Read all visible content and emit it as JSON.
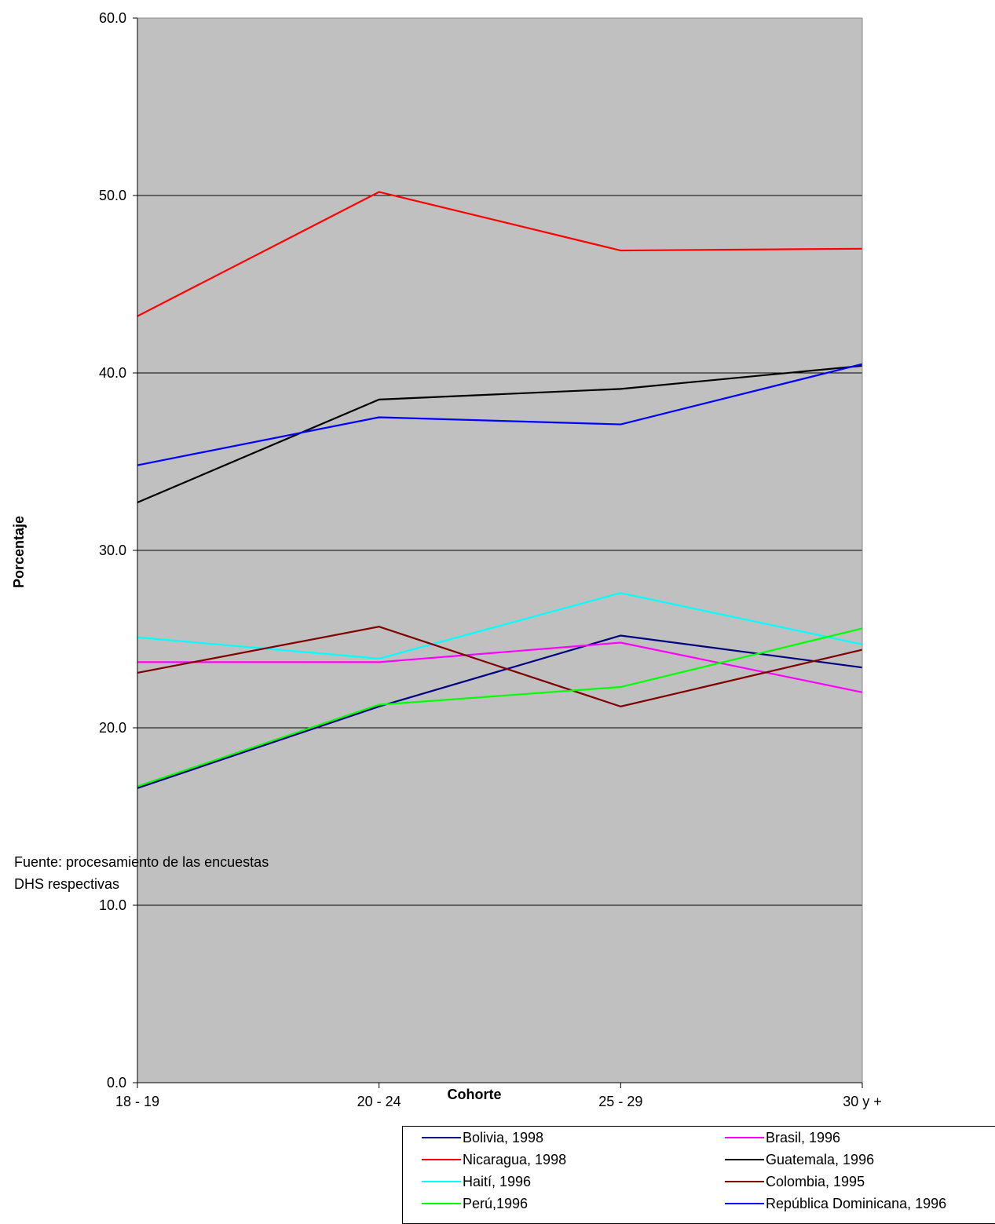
{
  "chart_data": {
    "type": "line",
    "title": "",
    "xlabel": "Cohorte",
    "ylabel": "Porcentaje",
    "ylim": [
      0,
      60
    ],
    "yticks": [
      "0.0",
      "10.0",
      "20.0",
      "30.0",
      "40.0",
      "50.0",
      "60.0"
    ],
    "categories": [
      "18 - 19",
      "20 - 24",
      "25 - 29",
      "30 y +"
    ],
    "grid": true,
    "legend_position": "bottom-right",
    "plot_background": "#c0c0c0",
    "series": [
      {
        "name": "Bolivia, 1998",
        "color": "#000080",
        "values": [
          16.6,
          21.2,
          25.2,
          23.4
        ]
      },
      {
        "name": "Brasil, 1996",
        "color": "#ff00ff",
        "values": [
          23.7,
          23.7,
          24.8,
          22.0
        ]
      },
      {
        "name": "Nicaragua, 1998",
        "color": "#ff0000",
        "values": [
          43.2,
          50.2,
          46.9,
          47.0
        ]
      },
      {
        "name": "Guatemala, 1996",
        "color": "#000000",
        "values": [
          32.7,
          38.5,
          39.1,
          40.4
        ]
      },
      {
        "name": "Haití, 1996",
        "color": "#00ffff",
        "values": [
          25.1,
          23.9,
          27.6,
          24.7
        ]
      },
      {
        "name": "Colombia, 1995",
        "color": "#800000",
        "values": [
          23.1,
          25.7,
          21.2,
          24.4
        ]
      },
      {
        "name": "Perú,1996",
        "color": "#00ff00",
        "values": [
          16.7,
          21.3,
          22.3,
          25.6
        ]
      },
      {
        "name": "República Dominicana, 1996",
        "color": "#0000ff",
        "values": [
          34.8,
          37.5,
          37.1,
          40.5
        ]
      }
    ]
  },
  "source_note": {
    "line1": "Fuente: procesamiento de las encuestas",
    "line2": "DHS respectivas"
  }
}
